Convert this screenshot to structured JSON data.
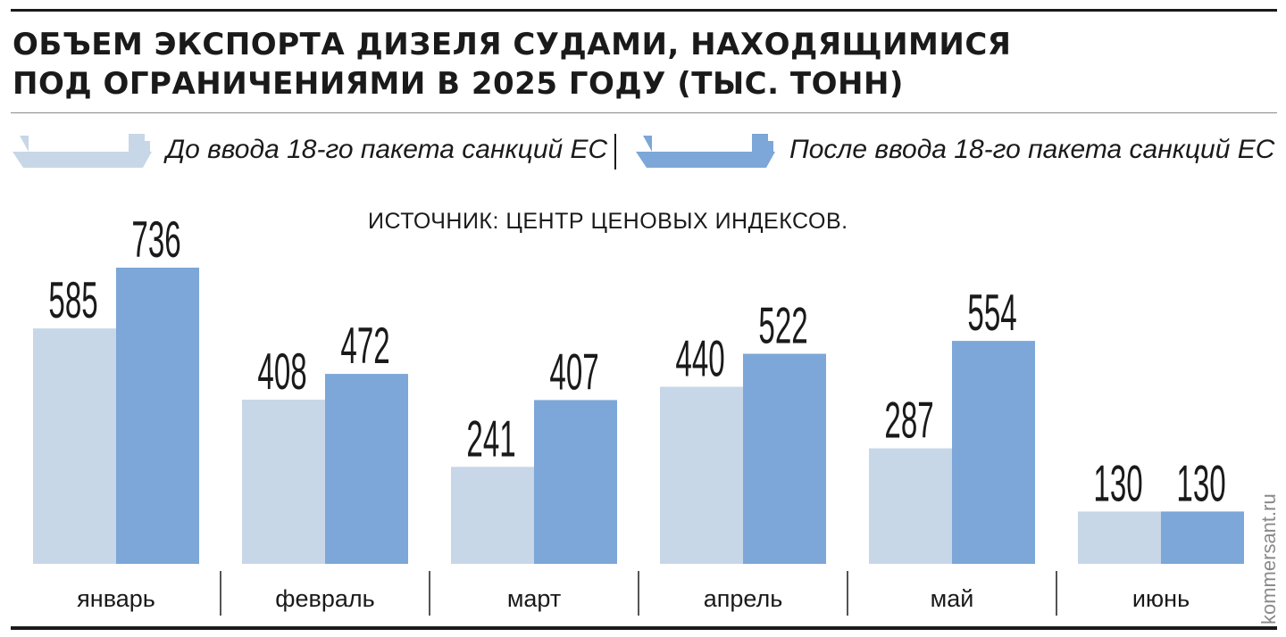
{
  "header": {
    "title_line1": "ОБЪЕМ ЭКСПОРТА ДИЗЕЛЯ СУДАМИ, НАХОДЯЩИМИСЯ",
    "title_line2": "ПОД ОГРАНИЧЕНИЯМИ В 2025 ГОДУ (ТЫС. ТОНН)"
  },
  "legend": {
    "before_label": "До ввода 18-го пакета санкций ЕС",
    "after_label": "После ввода 18-го пакета санкций ЕС",
    "before_icon": "ship-icon",
    "after_icon": "ship-icon"
  },
  "source": "ИСТОЧНИК: ЦЕНТР ЦЕНОВЫХ ИНДЕКСОВ.",
  "watermark": "kommersant.ru",
  "colors": {
    "before": "#c7d7e8",
    "after": "#7ca7d8",
    "text": "#1a1a1a"
  },
  "chart_data": {
    "type": "bar",
    "title": "ОБЪЕМ ЭКСПОРТА ДИЗЕЛЯ СУДАМИ, НАХОДЯЩИМИСЯ ПОД ОГРАНИЧЕНИЯМИ В 2025 ГОДУ (ТЫС. ТОНН)",
    "categories": [
      "январь",
      "февраль",
      "март",
      "апрель",
      "май",
      "июнь"
    ],
    "series": [
      {
        "name": "До ввода 18-го пакета санкций ЕС",
        "values": [
          585,
          408,
          241,
          440,
          287,
          130
        ]
      },
      {
        "name": "После ввода 18-го пакета санкций ЕС",
        "values": [
          736,
          472,
          407,
          522,
          554,
          130
        ]
      }
    ],
    "ylim": [
      0,
      736
    ],
    "grid": false,
    "legend_position": "top",
    "data_labels": true
  }
}
